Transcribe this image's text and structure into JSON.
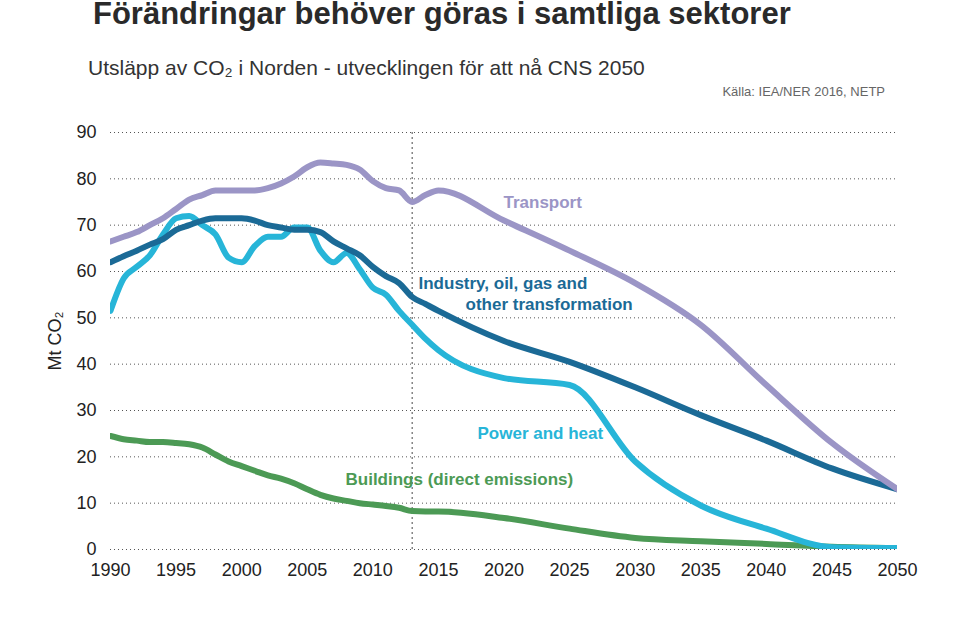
{
  "chart_data": {
    "type": "line",
    "title": "Förändringar behöver göras i samtliga sektorer",
    "subtitle": "Utsläpp av CO₂ i Norden - utvecklingen för att nå CNS 2050",
    "source": "Källa: IEA/NER 2016, NETP",
    "y_label": "Mt CO₂",
    "x": [
      1990,
      1991,
      1992,
      1993,
      1994,
      1995,
      1996,
      1997,
      1998,
      1999,
      2000,
      2001,
      2002,
      2003,
      2004,
      2005,
      2006,
      2007,
      2008,
      2009,
      2010,
      2011,
      2012,
      2013,
      2014,
      2015,
      2020,
      2025,
      2030,
      2035,
      2040,
      2045,
      2050
    ],
    "series": [
      {
        "name": "Buildings (direct emissions)",
        "color": "#4c9a55",
        "values": [
          24.5,
          23.8,
          23.5,
          23.2,
          23.2,
          23,
          22.7,
          22,
          20.5,
          19,
          18,
          17,
          16,
          15.3,
          14.3,
          13,
          11.8,
          11,
          10.5,
          10,
          9.7,
          9.4,
          9,
          8.3,
          8.2,
          8.2,
          6.8,
          4.5,
          2.5,
          1.8,
          1.2,
          0.6,
          0.3
        ]
      },
      {
        "name": "Power and heat",
        "color": "#27b5d8",
        "values": [
          51.5,
          58.5,
          61,
          63.5,
          68,
          71.5,
          72,
          70,
          68,
          63,
          62,
          65.5,
          67.5,
          67.5,
          69.5,
          69.5,
          64.5,
          62,
          64,
          60.5,
          56.5,
          55,
          51.5,
          48.5,
          45.5,
          43,
          37,
          35.5,
          19,
          9.5,
          4.5,
          0.5,
          0.3
        ]
      },
      {
        "name": "Industry, oil, gas and\nother transformation",
        "color": "#1b6a96",
        "values": [
          62,
          63.3,
          64.5,
          65.8,
          67,
          69,
          70,
          71,
          71.5,
          71.5,
          71.5,
          71,
          70,
          69.5,
          69,
          69,
          68.5,
          66.5,
          65,
          63.5,
          61,
          59,
          57.5,
          54.5,
          53,
          51.5,
          45,
          40.5,
          35,
          29,
          23.5,
          17.5,
          13
        ]
      },
      {
        "name": "Transport",
        "color": "#9b95c6",
        "values": [
          66.5,
          67.5,
          68.5,
          70,
          71.5,
          73.5,
          75.5,
          76.5,
          77.5,
          77.5,
          77.5,
          77.5,
          78,
          79,
          80.5,
          82.5,
          83.5,
          83.3,
          83,
          82,
          79.5,
          78,
          77.5,
          75,
          76.5,
          77.5,
          71,
          64.5,
          57.5,
          48.5,
          35.5,
          23,
          13
        ]
      }
    ],
    "projection_start": 2013,
    "xlim": [
      1990,
      2050
    ],
    "xticks": [
      1990,
      1995,
      2000,
      2005,
      2010,
      2015,
      2020,
      2025,
      2030,
      2035,
      2040,
      2045,
      2050
    ],
    "ylim": [
      0,
      90
    ],
    "yticks": [
      0,
      10,
      20,
      30,
      40,
      50,
      60,
      70,
      80,
      90
    ],
    "grid": true
  }
}
